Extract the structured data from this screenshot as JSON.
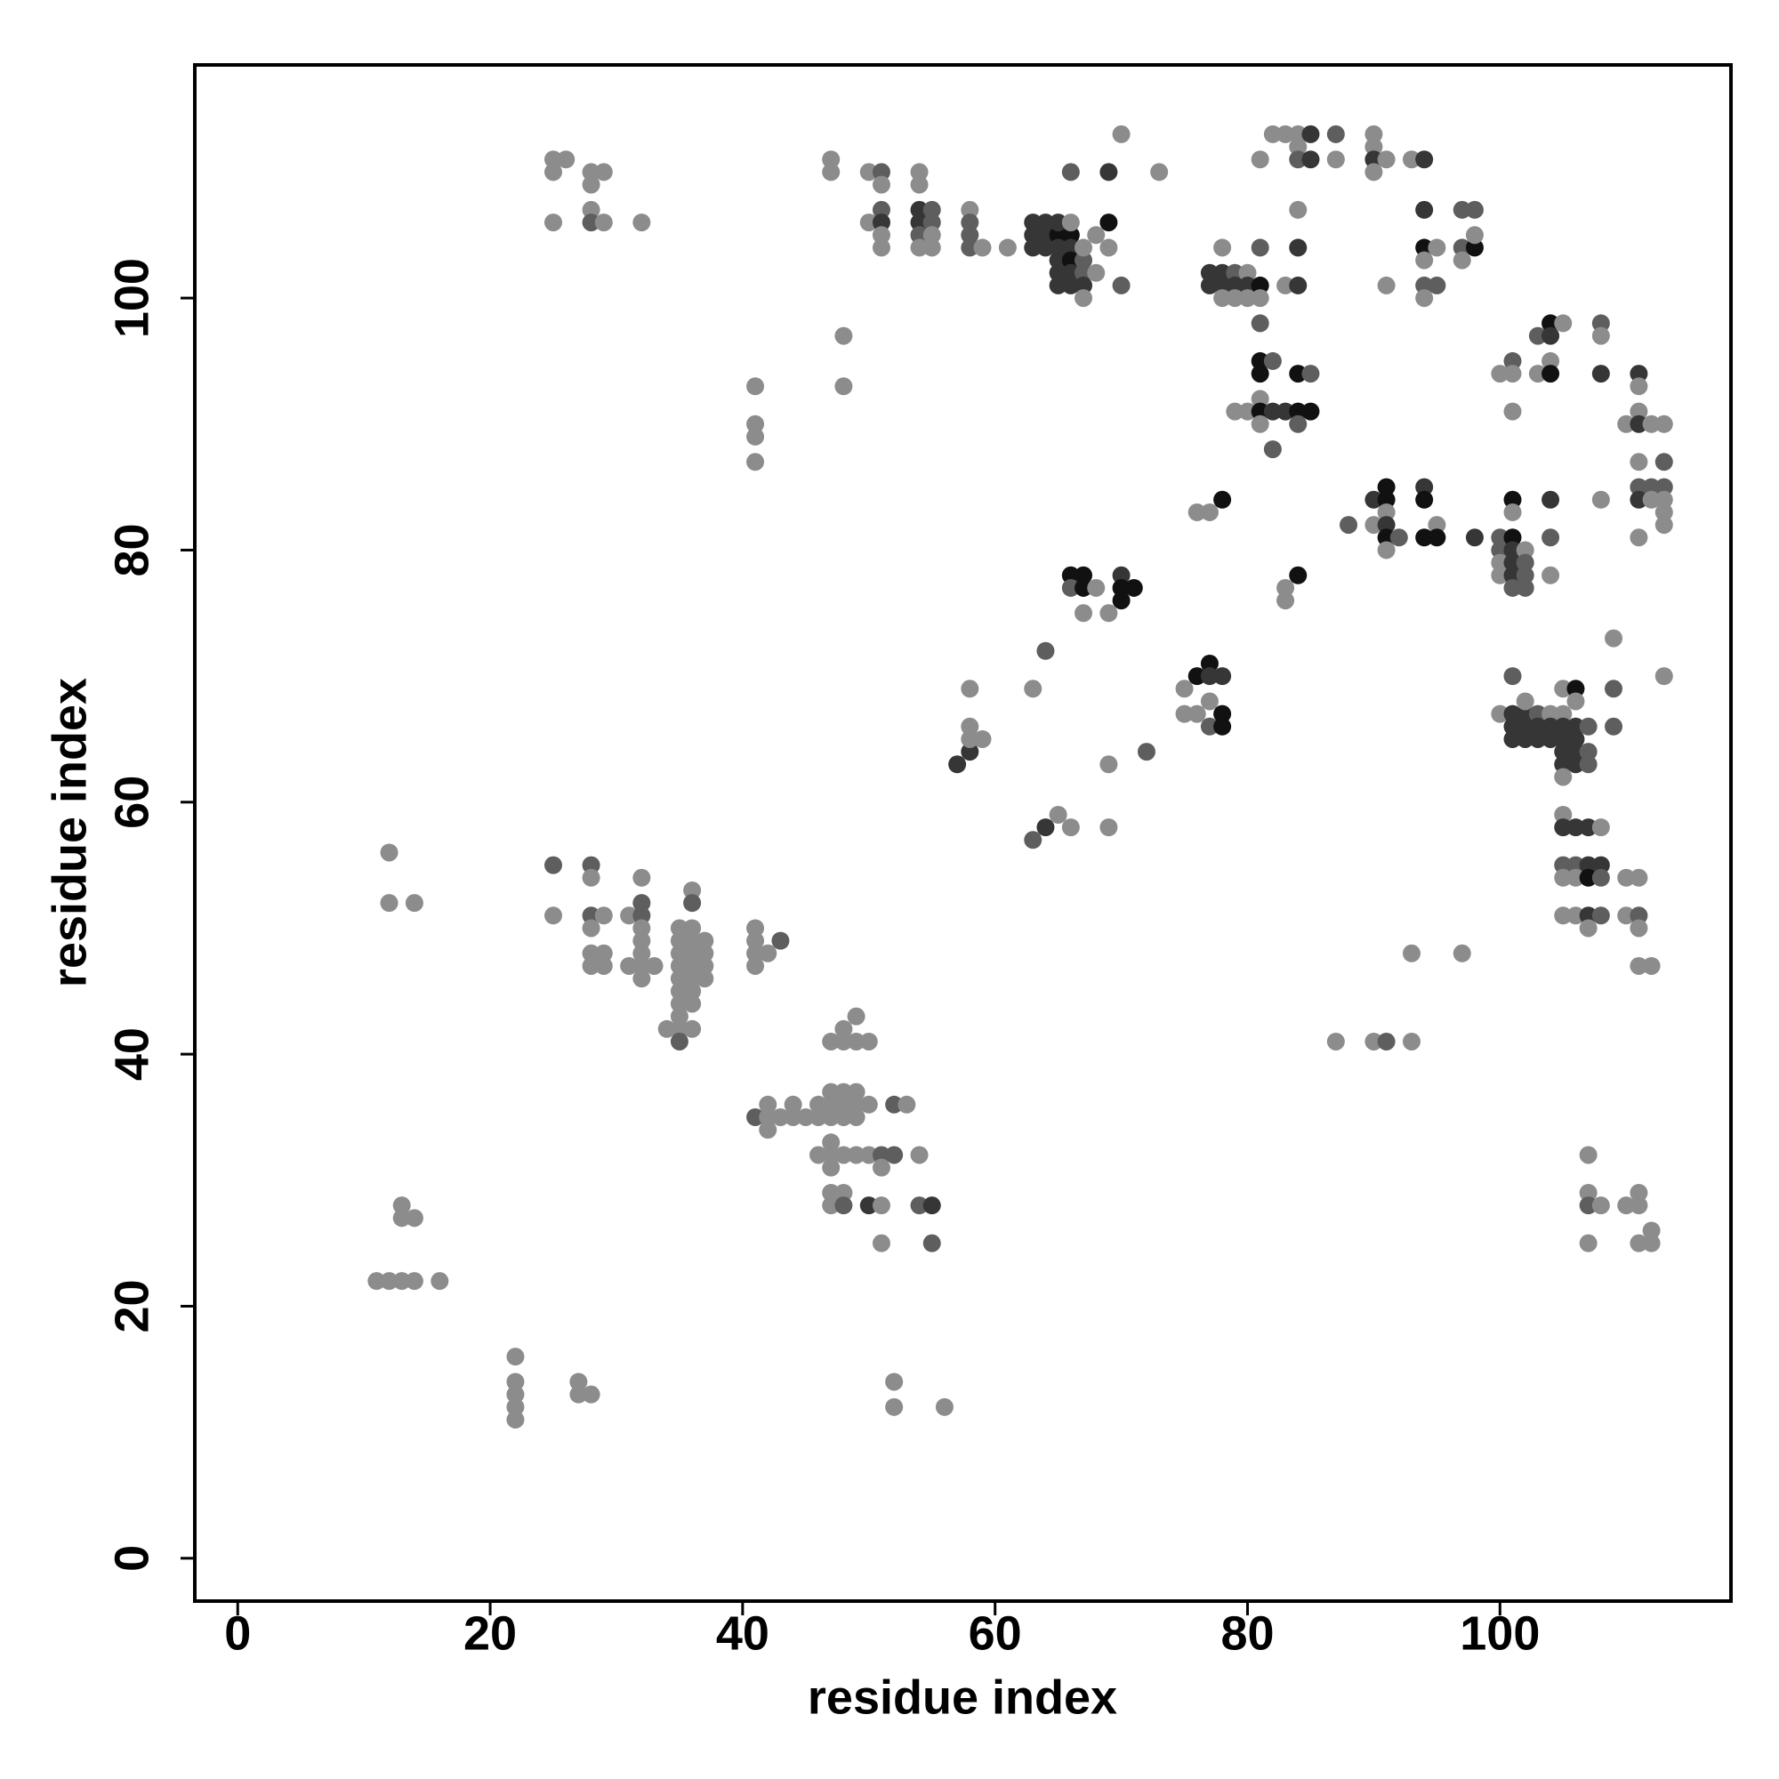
{
  "chart_data": {
    "type": "scatter",
    "xlabel": "residue index",
    "ylabel": "residue index",
    "xlim": [
      -3.4,
      118.3
    ],
    "ylim": [
      -3.4,
      118.5
    ],
    "xticks": [
      0,
      20,
      40,
      60,
      80,
      100
    ],
    "yticks": [
      0,
      20,
      40,
      60,
      80,
      100
    ],
    "x": [
      11,
      12,
      13,
      14,
      16,
      13,
      13,
      14,
      12,
      12,
      14,
      22,
      22,
      22,
      22,
      22,
      27,
      27,
      28,
      52,
      52,
      56,
      25,
      25,
      26,
      28,
      28,
      29,
      28,
      28,
      29,
      25,
      32,
      25,
      25,
      28,
      28,
      28,
      29,
      28,
      28,
      29,
      28,
      29,
      31,
      32,
      32,
      32,
      32,
      32,
      32,
      32,
      31,
      33,
      32,
      35,
      36,
      35,
      36,
      37,
      35,
      36,
      37,
      35,
      36,
      37,
      35,
      36,
      37,
      35,
      36,
      35,
      36,
      35,
      34,
      35,
      36,
      35,
      36,
      36,
      41,
      41,
      41,
      42,
      41,
      43,
      41,
      41,
      41,
      41,
      48,
      48,
      47,
      47,
      50,
      51,
      51,
      50,
      51,
      51,
      51,
      51,
      54,
      54,
      54,
      55,
      54,
      55,
      54,
      55,
      54,
      55,
      58,
      58,
      58,
      58,
      59,
      49,
      48,
      47,
      48,
      49,
      50,
      47,
      48,
      49,
      46,
      47,
      48,
      49,
      50,
      52,
      53,
      41,
      42,
      43,
      44,
      45,
      46,
      47,
      48,
      49,
      42,
      44,
      42,
      47,
      46,
      47,
      48,
      49,
      50,
      51,
      52,
      54,
      47,
      51,
      47,
      48,
      47,
      48,
      50,
      51,
      54,
      55,
      51,
      55,
      57,
      58,
      58,
      59,
      58,
      58,
      63,
      64,
      63,
      64,
      65,
      66,
      69,
      69,
      72,
      66,
      67,
      66,
      67,
      68,
      67,
      69,
      70,
      70,
      71,
      70,
      61,
      63,
      64,
      63,
      64,
      65,
      66,
      65,
      66,
      63,
      64,
      65,
      66,
      65,
      66,
      65,
      66,
      67,
      65,
      66,
      67,
      67,
      67,
      67,
      68,
      68,
      69,
      69,
      66,
      69,
      70,
      70,
      73,
      76,
      77,
      78,
      75,
      75,
      76,
      76,
      77,
      77,
      78,
      77,
      78,
      77,
      78,
      78,
      77,
      78,
      79,
      80,
      77,
      78,
      79,
      80,
      81,
      78,
      79,
      80,
      81,
      81,
      81,
      81,
      82,
      81,
      81,
      80,
      81,
      82,
      83,
      84,
      85,
      81,
      84,
      82,
      84,
      85,
      79,
      82,
      83,
      84,
      85,
      84,
      84,
      85,
      81,
      87,
      87,
      84,
      84,
      83,
      84,
      90,
      90,
      90,
      90,
      91,
      93,
      94,
      94,
      94,
      95,
      94,
      94,
      95,
      94,
      91,
      97,
      98,
      97,
      98,
      97,
      98,
      83,
      83,
      84,
      88,
      90,
      91,
      91,
      91,
      90,
      91,
      91,
      92,
      91,
      94,
      94,
      95,
      94,
      95,
      98,
      100,
      101,
      100,
      101,
      102,
      100,
      101,
      102,
      100,
      101,
      102,
      101,
      102,
      101,
      104,
      104,
      104,
      101,
      100,
      101,
      101,
      101,
      103,
      103,
      104,
      105,
      104,
      104,
      104,
      108,
      108,
      108,
      111,
      111,
      111,
      110,
      111,
      112,
      113,
      111,
      113,
      111,
      112,
      113,
      111,
      112,
      113,
      113,
      113,
      111,
      108,
      101,
      100,
      101,
      102,
      103,
      102,
      104,
      105,
      101,
      102,
      103,
      104,
      105,
      106,
      101,
      102,
      103,
      104,
      105,
      106,
      105,
      106,
      105,
      106,
      107,
      107,
      107,
      105,
      105,
      106,
      106,
      109,
      109,
      109,
      113,
      105,
      105,
      106,
      107,
      108,
      105,
      106,
      107,
      108,
      105,
      106,
      107,
      108,
      105,
      106,
      107,
      108,
      107,
      110,
      111,
      110,
      111,
      111,
      111,
      112,
      107,
      107,
      107,
      108,
      107,
      110,
      111,
      111,
      112,
      111,
      112,
      93,
      97,
      87,
      90,
      91,
      93
    ],
    "y": [
      22,
      22,
      22,
      22,
      22,
      28,
      27,
      27,
      56,
      52,
      52,
      16,
      14,
      13,
      12,
      11,
      14,
      13,
      13,
      14,
      12,
      12,
      111,
      110,
      111,
      110,
      109,
      110,
      107,
      106,
      106,
      106,
      106,
      55,
      51,
      55,
      54,
      51,
      51,
      50,
      48,
      48,
      47,
      47,
      51,
      52,
      51,
      50,
      49,
      48,
      47,
      46,
      47,
      47,
      54,
      50,
      50,
      49,
      49,
      49,
      48,
      48,
      48,
      47,
      47,
      47,
      46,
      46,
      46,
      45,
      45,
      44,
      44,
      43,
      42,
      42,
      42,
      41,
      53,
      52,
      50,
      49,
      48,
      48,
      47,
      49,
      93,
      90,
      89,
      87,
      97,
      93,
      111,
      110,
      110,
      110,
      109,
      106,
      107,
      106,
      105,
      104,
      110,
      109,
      107,
      107,
      106,
      106,
      105,
      105,
      104,
      104,
      107,
      106,
      105,
      104,
      104,
      43,
      42,
      41,
      41,
      41,
      41,
      37,
      37,
      37,
      36,
      36,
      36,
      36,
      36,
      36,
      36,
      35,
      35,
      35,
      35,
      35,
      35,
      35,
      35,
      35,
      36,
      36,
      34,
      33,
      32,
      32,
      32,
      32,
      32,
      32,
      32,
      32,
      31,
      31,
      29,
      29,
      28,
      28,
      28,
      28,
      28,
      28,
      25,
      25,
      63,
      64,
      65,
      65,
      66,
      69,
      69,
      72,
      57,
      58,
      59,
      58,
      58,
      63,
      64,
      78,
      78,
      77,
      77,
      77,
      75,
      75,
      78,
      77,
      77,
      76,
      104,
      106,
      106,
      105,
      105,
      105,
      105,
      106,
      106,
      104,
      104,
      104,
      104,
      103,
      103,
      102,
      102,
      102,
      101,
      101,
      101,
      103,
      104,
      100,
      102,
      105,
      106,
      104,
      110,
      110,
      113,
      101,
      110,
      83,
      83,
      84,
      69,
      67,
      67,
      70,
      71,
      70,
      70,
      68,
      67,
      66,
      66,
      104,
      102,
      102,
      102,
      102,
      101,
      101,
      101,
      101,
      101,
      100,
      100,
      100,
      100,
      104,
      98,
      95,
      95,
      94,
      92,
      91,
      91,
      91,
      91,
      91,
      91,
      90,
      90,
      88,
      94,
      94,
      91,
      113,
      113,
      113,
      113,
      112,
      111,
      111,
      111,
      113,
      111,
      107,
      104,
      101,
      101,
      113,
      112,
      111,
      110,
      111,
      111,
      111,
      107,
      104,
      104,
      103,
      101,
      101,
      100,
      101,
      107,
      107,
      104,
      104,
      103,
      105,
      77,
      76,
      78,
      82,
      84,
      84,
      85,
      83,
      82,
      82,
      81,
      81,
      80,
      85,
      84,
      82,
      81,
      81,
      81,
      81,
      81,
      80,
      80,
      80,
      79,
      79,
      79,
      78,
      78,
      78,
      77,
      77,
      84,
      84,
      81,
      78,
      83,
      94,
      95,
      94,
      91,
      94,
      97,
      98,
      98,
      97,
      95,
      94,
      98,
      97,
      94,
      94,
      93,
      91,
      90,
      90,
      90,
      90,
      87,
      87,
      85,
      85,
      85,
      84,
      84,
      84,
      83,
      82,
      81,
      84,
      70,
      67,
      67,
      67,
      67,
      68,
      67,
      67,
      66,
      66,
      66,
      66,
      66,
      66,
      65,
      65,
      65,
      65,
      65,
      65,
      64,
      64,
      63,
      63,
      66,
      64,
      63,
      62,
      69,
      69,
      68,
      69,
      73,
      66,
      70,
      59,
      58,
      58,
      58,
      58,
      55,
      55,
      55,
      55,
      54,
      54,
      54,
      54,
      51,
      51,
      51,
      51,
      50,
      54,
      54,
      51,
      51,
      50,
      47,
      47,
      32,
      29,
      28,
      28,
      25,
      28,
      29,
      28,
      26,
      25,
      25,
      48,
      48,
      41,
      41,
      41,
      41
    ],
    "colors": [
      "#8c8c8c",
      "#8c8c8c",
      "#8c8c8c",
      "#8c8c8c",
      "#8c8c8c",
      "#8c8c8c",
      "#8c8c8c",
      "#8c8c8c",
      "#8c8c8c",
      "#8c8c8c",
      "#8c8c8c",
      "#8c8c8c",
      "#8c8c8c",
      "#8c8c8c",
      "#8c8c8c",
      "#8c8c8c",
      "#8c8c8c",
      "#8c8c8c",
      "#8c8c8c",
      "#8c8c8c",
      "#8c8c8c",
      "#8c8c8c",
      "#8c8c8c",
      "#8c8c8c",
      "#8c8c8c",
      "#8c8c8c",
      "#8c8c8c",
      "#8c8c8c",
      "#8c8c8c",
      "#5e5e5e",
      "#8c8c8c",
      "#8c8c8c",
      "#8c8c8c",
      "#5e5e5e",
      "#8c8c8c",
      "#5e5e5e",
      "#8c8c8c",
      "#5e5e5e",
      "#8c8c8c",
      "#8c8c8c",
      "#8c8c8c",
      "#8c8c8c",
      "#8c8c8c",
      "#8c8c8c",
      "#8c8c8c",
      "#5e5e5e",
      "#5e5e5e",
      "#8c8c8c",
      "#8c8c8c",
      "#8c8c8c",
      "#8c8c8c",
      "#8c8c8c",
      "#8c8c8c",
      "#8c8c8c",
      "#8c8c8c",
      "#8c8c8c",
      "#8c8c8c",
      "#8c8c8c",
      "#8c8c8c",
      "#8c8c8c",
      "#8c8c8c",
      "#8c8c8c",
      "#8c8c8c",
      "#8c8c8c",
      "#8c8c8c",
      "#8c8c8c",
      "#8c8c8c",
      "#8c8c8c",
      "#8c8c8c",
      "#8c8c8c",
      "#8c8c8c",
      "#8c8c8c",
      "#8c8c8c",
      "#8c8c8c",
      "#8c8c8c",
      "#8c8c8c",
      "#8c8c8c",
      "#5e5e5e",
      "#8c8c8c",
      "#5e5e5e",
      "#8c8c8c",
      "#8c8c8c",
      "#8c8c8c",
      "#8c8c8c",
      "#8c8c8c",
      "#5e5e5e",
      "#8c8c8c",
      "#8c8c8c",
      "#8c8c8c",
      "#8c8c8c",
      "#8c8c8c",
      "#8c8c8c",
      "#8c8c8c",
      "#8c8c8c",
      "#8c8c8c",
      "#5e5e5e",
      "#8c8c8c",
      "#8c8c8c",
      "#5e5e5e",
      "#363636",
      "#8c8c8c",
      "#8c8c8c",
      "#8c8c8c",
      "#8c8c8c",
      "#363636",
      "#5e5e5e",
      "#363636",
      "#5e5e5e",
      "#5e5e5e",
      "#8c8c8c",
      "#8c8c8c",
      "#8c8c8c",
      "#8c8c8c",
      "#5e5e5e",
      "#5e5e5e",
      "#5e5e5e",
      "#8c8c8c",
      "#8c8c8c",
      "#8c8c8c",
      "#8c8c8c",
      "#8c8c8c",
      "#8c8c8c",
      "#8c8c8c",
      "#8c8c8c",
      "#8c8c8c",
      "#8c8c8c",
      "#8c8c8c",
      "#8c8c8c",
      "#8c8c8c",
      "#8c8c8c",
      "#8c8c8c",
      "#5e5e5e",
      "#8c8c8c",
      "#5e5e5e",
      "#8c8c8c",
      "#8c8c8c",
      "#8c8c8c",
      "#8c8c8c",
      "#8c8c8c",
      "#8c8c8c",
      "#8c8c8c",
      "#8c8c8c",
      "#8c8c8c",
      "#8c8c8c",
      "#8c8c8c",
      "#8c8c8c",
      "#8c8c8c",
      "#8c8c8c",
      "#8c8c8c",
      "#8c8c8c",
      "#8c8c8c",
      "#5e5e5e",
      "#5e5e5e",
      "#8c8c8c",
      "#8c8c8c",
      "#8c8c8c",
      "#8c8c8c",
      "#8c8c8c",
      "#8c8c8c",
      "#5e5e5e",
      "#363636",
      "#8c8c8c",
      "#5e5e5e",
      "#363636",
      "#8c8c8c",
      "#5e5e5e",
      "#363636",
      "#363636",
      "#8c8c8c",
      "#8c8c8c",
      "#8c8c8c",
      "#8c8c8c",
      "#8c8c8c",
      "#5e5e5e",
      "#5e5e5e",
      "#363636",
      "#8c8c8c",
      "#8c8c8c",
      "#8c8c8c",
      "#8c8c8c",
      "#5e5e5e",
      "#111111",
      "#111111",
      "#5e5e5e",
      "#111111",
      "#8c8c8c",
      "#8c8c8c",
      "#8c8c8c",
      "#363636",
      "#111111",
      "#111111",
      "#111111",
      "#8c8c8c",
      "#363636",
      "#363636",
      "#363636",
      "#363636",
      "#111111",
      "#111111",
      "#363636",
      "#8c8c8c",
      "#363636",
      "#363636",
      "#363636",
      "#363636",
      "#363636",
      "#111111",
      "#363636",
      "#363636",
      "#5e5e5e",
      "#363636",
      "#363636",
      "#363636",
      "#5e5e5e",
      "#8c8c8c",
      "#8c8c8c",
      "#8c8c8c",
      "#8c8c8c",
      "#111111",
      "#8c8c8c",
      "#5e5e5e",
      "#363636",
      "#8c8c8c",
      "#5e5e5e",
      "#8c8c8c",
      "#8c8c8c",
      "#8c8c8c",
      "#111111",
      "#8c8c8c",
      "#8c8c8c",
      "#8c8c8c",
      "#111111",
      "#111111",
      "#363636",
      "#363636",
      "#8c8c8c",
      "#111111",
      "#5e5e5e",
      "#111111",
      "#8c8c8c",
      "#363636",
      "#363636",
      "#5e5e5e",
      "#8c8c8c",
      "#363636",
      "#363636",
      "#363636",
      "#363636",
      "#111111",
      "#8c8c8c",
      "#8c8c8c",
      "#8c8c8c",
      "#8c8c8c",
      "#5e5e5e",
      "#5e5e5e",
      "#111111",
      "#5e5e5e",
      "#111111",
      "#8c8c8c",
      "#8c8c8c",
      "#111111",
      "#363636",
      "#363636",
      "#111111",
      "#111111",
      "#8c8c8c",
      "#5e5e5e",
      "#5e5e5e",
      "#111111",
      "#5e5e5e",
      "#8c8c8c",
      "#8c8c8c",
      "#8c8c8c",
      "#8c8c8c",
      "#363636",
      "#8c8c8c",
      "#5e5e5e",
      "#363636",
      "#8c8c8c",
      "#5e5e5e",
      "#8c8c8c",
      "#8c8c8c",
      "#363636",
      "#8c8c8c",
      "#363636",
      "#8c8c8c",
      "#8c8c8c",
      "#363636",
      "#8c8c8c",
      "#8c8c8c",
      "#8c8c8c",
      "#363636",
      "#363636",
      "#111111",
      "#8c8c8c",
      "#8c8c8c",
      "#5e5e5e",
      "#5e5e5e",
      "#8c8c8c",
      "#8c8c8c",
      "#5e5e5e",
      "#5e5e5e",
      "#5e5e5e",
      "#111111",
      "#8c8c8c",
      "#8c8c8c",
      "#8c8c8c",
      "#8c8c8c",
      "#111111",
      "#5e5e5e",
      "#363636",
      "#111111",
      "#111111",
      "#8c8c8c",
      "#8c8c8c",
      "#363636",
      "#111111",
      "#5e5e5e",
      "#8c8c8c",
      "#363636",
      "#111111",
      "#8c8c8c",
      "#111111",
      "#111111",
      "#363636",
      "#5e5e5e",
      "#111111",
      "#5e5e5e",
      "#363636",
      "#8c8c8c",
      "#8c8c8c",
      "#363636",
      "#5e5e5e",
      "#8c8c8c",
      "#363636",
      "#5e5e5e",
      "#5e5e5e",
      "#5e5e5e",
      "#111111",
      "#363636",
      "#5e5e5e",
      "#8c8c8c",
      "#8c8c8c",
      "#8c8c8c",
      "#5e5e5e",
      "#8c8c8c",
      "#8c8c8c",
      "#8c8c8c",
      "#5e5e5e",
      "#111111",
      "#8c8c8c",
      "#363636",
      "#8c8c8c",
      "#111111",
      "#5e5e5e",
      "#8c8c8c",
      "#363636",
      "#363636",
      "#8c8c8c",
      "#8c8c8c",
      "#8c8c8c",
      "#363636",
      "#8c8c8c",
      "#8c8c8c",
      "#8c8c8c",
      "#5e5e5e",
      "#5e5e5e",
      "#5e5e5e",
      "#5e5e5e",
      "#363636",
      "#8c8c8c",
      "#8c8c8c",
      "#8c8c8c",
      "#8c8c8c",
      "#8c8c8c",
      "#8c8c8c",
      "#5e5e5e",
      "#8c8c8c",
      "#363636",
      "#363636",
      "#5e5e5e",
      "#8c8c8c",
      "#8c8c8c",
      "#8c8c8c",
      "#363636",
      "#363636",
      "#363636",
      "#363636",
      "#363636",
      "#363636",
      "#363636",
      "#363636",
      "#363636",
      "#363636",
      "#363636",
      "#363636",
      "#363636",
      "#363636",
      "#363636",
      "#363636",
      "#5e5e5e",
      "#5e5e5e",
      "#5e5e5e",
      "#8c8c8c",
      "#8c8c8c",
      "#111111",
      "#8c8c8c",
      "#5e5e5e",
      "#8c8c8c",
      "#5e5e5e",
      "#8c8c8c",
      "#8c8c8c",
      "#363636",
      "#363636",
      "#363636",
      "#8c8c8c",
      "#5e5e5e",
      "#5e5e5e",
      "#363636",
      "#363636",
      "#8c8c8c",
      "#8c8c8c",
      "#111111",
      "#5e5e5e",
      "#8c8c8c",
      "#8c8c8c",
      "#363636",
      "#5e5e5e",
      "#8c8c8c",
      "#8c8c8c",
      "#8c8c8c",
      "#8c8c8c",
      "#5e5e5e",
      "#8c8c8c",
      "#8c8c8c",
      "#8c8c8c",
      "#8c8c8c",
      "#8c8c8c",
      "#5e5e5e",
      "#8c8c8c",
      "#8c8c8c",
      "#8c8c8c",
      "#8c8c8c",
      "#8c8c8c",
      "#8c8c8c",
      "#8c8c8c",
      "#8c8c8c",
      "#8c8c8c",
      "#8c8c8c",
      "#8c8c8c",
      "#8c8c8c",
      "#5e5e5e",
      "#8c8c8c"
    ]
  }
}
